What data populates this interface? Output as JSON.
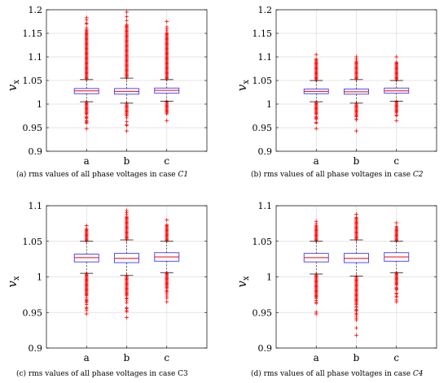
{
  "chart_data": [
    {
      "type": "box",
      "caption_prefix": "(a)  rms values of all phase voltages in case ",
      "caption_case": "C1",
      "ylabel": "v",
      "ylabel_sub": "x",
      "categories": [
        "a",
        "b",
        "c"
      ],
      "ylim": [
        0.9,
        1.2
      ],
      "yticks": [
        "0.9",
        "0.95",
        "1",
        "1.05",
        "1.1",
        "1.15",
        "1.2"
      ],
      "grid": true,
      "boxes": [
        {
          "whisker_low": 1.005,
          "q1": 1.022,
          "median": 1.028,
          "q3": 1.033,
          "whisker_high": 1.052,
          "outlier_low": 0.948,
          "outlier_high": 1.183
        },
        {
          "whisker_low": 1.002,
          "q1": 1.021,
          "median": 1.027,
          "q3": 1.033,
          "whisker_high": 1.055,
          "outlier_low": 0.943,
          "outlier_high": 1.195
        },
        {
          "whisker_low": 1.006,
          "q1": 1.023,
          "median": 1.029,
          "q3": 1.034,
          "whisker_high": 1.052,
          "outlier_low": 0.965,
          "outlier_high": 1.175
        }
      ]
    },
    {
      "type": "box",
      "caption_prefix": "(b)  rms values of all phase voltages in case ",
      "caption_case": "C2",
      "ylabel": "v",
      "ylabel_sub": "x",
      "categories": [
        "a",
        "b",
        "c"
      ],
      "ylim": [
        0.9,
        1.2
      ],
      "yticks": [
        "0.9",
        "0.95",
        "1",
        "1.05",
        "1.1",
        "1.15",
        "1.2"
      ],
      "grid": true,
      "boxes": [
        {
          "whisker_low": 1.005,
          "q1": 1.022,
          "median": 1.027,
          "q3": 1.032,
          "whisker_high": 1.05,
          "outlier_low": 0.948,
          "outlier_high": 1.105
        },
        {
          "whisker_low": 1.002,
          "q1": 1.021,
          "median": 1.026,
          "q3": 1.032,
          "whisker_high": 1.052,
          "outlier_low": 0.943,
          "outlier_high": 1.1
        },
        {
          "whisker_low": 1.006,
          "q1": 1.023,
          "median": 1.028,
          "q3": 1.034,
          "whisker_high": 1.05,
          "outlier_low": 0.965,
          "outlier_high": 1.1
        }
      ]
    },
    {
      "type": "box",
      "caption_prefix": "(c)  rms values of all phase voltages in case C3",
      "caption_case": "",
      "ylabel": "v",
      "ylabel_sub": "x",
      "categories": [
        "a",
        "b",
        "c"
      ],
      "ylim": [
        0.9,
        1.1
      ],
      "yticks": [
        "0.9",
        "0.95",
        "1",
        "1.05",
        "1.1"
      ],
      "grid": true,
      "boxes": [
        {
          "whisker_low": 1.005,
          "q1": 1.021,
          "median": 1.027,
          "q3": 1.032,
          "whisker_high": 1.05,
          "outlier_low": 0.948,
          "outlier_high": 1.072
        },
        {
          "whisker_low": 1.002,
          "q1": 1.02,
          "median": 1.026,
          "q3": 1.033,
          "whisker_high": 1.052,
          "outlier_low": 0.943,
          "outlier_high": 1.093
        },
        {
          "whisker_low": 1.006,
          "q1": 1.022,
          "median": 1.028,
          "q3": 1.034,
          "whisker_high": 1.05,
          "outlier_low": 0.965,
          "outlier_high": 1.08
        }
      ]
    },
    {
      "type": "box",
      "caption_prefix": "(d)  rms values of all phase voltages in case ",
      "caption_case": "C4",
      "ylabel": "v",
      "ylabel_sub": "x",
      "categories": [
        "a",
        "b",
        "c"
      ],
      "ylim": [
        0.9,
        1.1
      ],
      "yticks": [
        "0.9",
        "0.95",
        "1",
        "1.05",
        "1.1"
      ],
      "grid": true,
      "boxes": [
        {
          "whisker_low": 1.004,
          "q1": 1.021,
          "median": 1.027,
          "q3": 1.033,
          "whisker_high": 1.05,
          "outlier_low": 0.948,
          "outlier_high": 1.078
        },
        {
          "whisker_low": 1.001,
          "q1": 1.02,
          "median": 1.026,
          "q3": 1.033,
          "whisker_high": 1.052,
          "outlier_low": 0.918,
          "outlier_high": 1.088
        },
        {
          "whisker_low": 1.006,
          "q1": 1.022,
          "median": 1.028,
          "q3": 1.034,
          "whisker_high": 1.05,
          "outlier_low": 0.965,
          "outlier_high": 1.076
        }
      ]
    }
  ]
}
